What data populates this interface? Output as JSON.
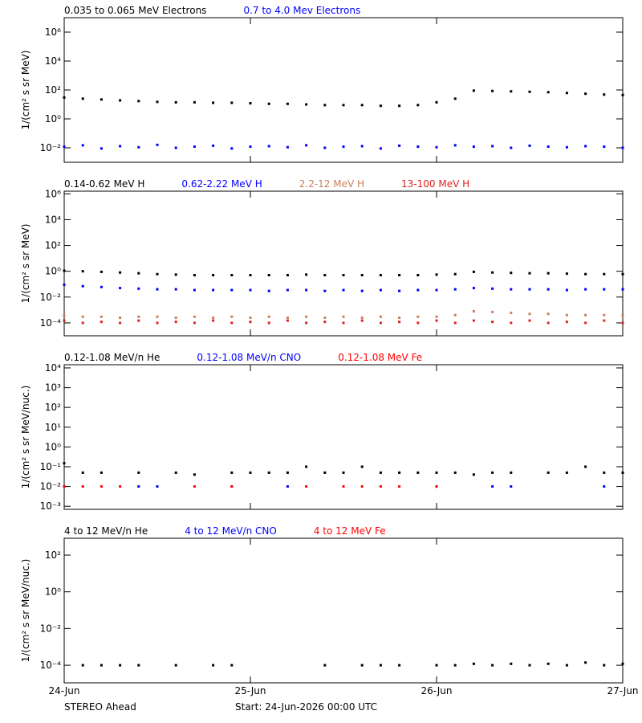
{
  "chart_data": [
    {
      "type": "scatter",
      "log_y": true,
      "ylabel": "1/(cm² s sr MeV)",
      "x": [
        0,
        0.1,
        0.2,
        0.3,
        0.4,
        0.5,
        0.6,
        0.7,
        0.8,
        0.9,
        1,
        1.1,
        1.2,
        1.3,
        1.4,
        1.5,
        1.6,
        1.7,
        1.8,
        1.9,
        2,
        2.1,
        2.2,
        2.3,
        2.4,
        2.5,
        2.6,
        2.7,
        2.8,
        2.9,
        3
      ],
      "ylim": [
        0.001,
        10000000
      ],
      "yticks": [
        {
          "value": 0.01,
          "label": "10⁻²"
        },
        {
          "value": 1,
          "label": "10⁰"
        },
        {
          "value": 100,
          "label": "10²"
        },
        {
          "value": 10000,
          "label": "10⁴"
        },
        {
          "value": 1000000,
          "label": "10⁶"
        }
      ],
      "series": [
        {
          "name": "0.035 to 0.065 MeV Electrons",
          "color": "#000000",
          "values": [
            30,
            25,
            22,
            19,
            17,
            15,
            14,
            14,
            13,
            13,
            12,
            11,
            11,
            10,
            9,
            9,
            9,
            8,
            8,
            9,
            14,
            25,
            90,
            85,
            80,
            75,
            70,
            62,
            55,
            48,
            45
          ]
        },
        {
          "name": "0.7 to 4.0 Mev Electrons",
          "color": "#0000ff",
          "values": [
            0.012,
            0.015,
            0.009,
            0.013,
            0.011,
            0.016,
            0.01,
            0.012,
            0.014,
            0.009,
            0.012,
            0.013,
            0.011,
            0.015,
            0.01,
            0.012,
            0.013,
            0.009,
            0.014,
            0.012,
            0.011,
            0.015,
            0.012,
            0.013,
            0.01,
            0.014,
            0.012,
            0.011,
            0.013,
            0.012,
            0.01
          ]
        }
      ]
    },
    {
      "type": "scatter",
      "log_y": true,
      "ylabel": "1/(cm² s sr MeV)",
      "x": [
        0,
        0.1,
        0.2,
        0.3,
        0.4,
        0.5,
        0.6,
        0.7,
        0.8,
        0.9,
        1,
        1.1,
        1.2,
        1.3,
        1.4,
        1.5,
        1.6,
        1.7,
        1.8,
        1.9,
        2,
        2.1,
        2.2,
        2.3,
        2.4,
        2.5,
        2.6,
        2.7,
        2.8,
        2.9,
        3
      ],
      "ylim": [
        1e-05,
        1600000
      ],
      "yticks": [
        {
          "value": 0.0001,
          "label": "10⁻⁴"
        },
        {
          "value": 0.01,
          "label": "10⁻²"
        },
        {
          "value": 1,
          "label": "10⁰"
        },
        {
          "value": 100,
          "label": "10²"
        },
        {
          "value": 10000,
          "label": "10⁴"
        },
        {
          "value": 1000000,
          "label": "10⁶"
        }
      ],
      "series": [
        {
          "name": "0.14-0.62 MeV H",
          "color": "#000000",
          "values": [
            1.1,
            1,
            0.9,
            0.8,
            0.7,
            0.6,
            0.55,
            0.5,
            0.5,
            0.5,
            0.5,
            0.5,
            0.5,
            0.55,
            0.5,
            0.5,
            0.5,
            0.5,
            0.5,
            0.5,
            0.55,
            0.6,
            0.9,
            0.8,
            0.75,
            0.7,
            0.7,
            0.65,
            0.6,
            0.6,
            0.6
          ]
        },
        {
          "name": "0.62-2.22 MeV H",
          "color": "#0000ff",
          "values": [
            0.09,
            0.07,
            0.06,
            0.05,
            0.045,
            0.04,
            0.04,
            0.035,
            0.035,
            0.035,
            0.035,
            0.03,
            0.035,
            0.035,
            0.03,
            0.035,
            0.03,
            0.035,
            0.03,
            0.035,
            0.035,
            0.04,
            0.05,
            0.045,
            0.04,
            0.04,
            0.04,
            0.035,
            0.04,
            0.04,
            0.04
          ]
        },
        {
          "name": "2.2-12 MeV H",
          "color": "#c8805a",
          "values": [
            0.0004,
            0.0003,
            0.0003,
            0.00025,
            0.0003,
            0.0003,
            0.00025,
            0.0003,
            0.00025,
            0.0003,
            0.00025,
            0.0003,
            0.00025,
            0.0003,
            0.00025,
            0.0003,
            0.00025,
            0.0003,
            0.00025,
            0.0003,
            0.0003,
            0.0004,
            0.0008,
            0.0007,
            0.0006,
            0.0005,
            0.0005,
            0.0004,
            0.0004,
            0.0004,
            0.0004
          ]
        },
        {
          "name": "13-100 MeV H",
          "color": "#e02020",
          "values": [
            0.00015,
            0.0001,
            0.00012,
            0.0001,
            0.00015,
            0.0001,
            0.00012,
            0.0001,
            0.00015,
            0.0001,
            0.00012,
            0.0001,
            0.00015,
            0.0001,
            0.00012,
            0.0001,
            0.00015,
            0.0001,
            0.00012,
            0.0001,
            0.00015,
            0.0001,
            0.00015,
            0.00012,
            0.0001,
            0.00015,
            0.0001,
            0.00012,
            0.0001,
            0.00015,
            0.0001
          ]
        }
      ]
    },
    {
      "type": "scatter",
      "log_y": true,
      "ylabel": "1/(cm² s sr MeV/nuc.)",
      "x": [
        0,
        0.1,
        0.2,
        0.3,
        0.4,
        0.5,
        0.6,
        0.7,
        0.8,
        0.9,
        1,
        1.1,
        1.2,
        1.3,
        1.4,
        1.5,
        1.6,
        1.7,
        1.8,
        1.9,
        2,
        2.1,
        2.2,
        2.3,
        2.4,
        2.5,
        2.6,
        2.7,
        2.8,
        2.9,
        3
      ],
      "ylim": [
        0.0007,
        14500
      ],
      "yticks": [
        {
          "value": 0.001,
          "label": "10⁻³"
        },
        {
          "value": 0.01,
          "label": "10⁻²"
        },
        {
          "value": 0.1,
          "label": "10⁻¹"
        },
        {
          "value": 1,
          "label": "10⁰"
        },
        {
          "value": 10,
          "label": "10¹"
        },
        {
          "value": 100,
          "label": "10²"
        },
        {
          "value": 1000,
          "label": "10³"
        },
        {
          "value": 10000,
          "label": "10⁴"
        }
      ],
      "series": [
        {
          "name": "0.12-1.08 MeV/n He",
          "color": "#000000",
          "values": [
            0.15,
            0.05,
            0.05,
            null,
            0.05,
            null,
            0.05,
            0.04,
            null,
            0.05,
            0.05,
            0.05,
            0.05,
            0.1,
            0.05,
            0.05,
            0.1,
            0.05,
            0.05,
            0.05,
            0.05,
            0.05,
            0.04,
            0.05,
            0.05,
            null,
            0.05,
            0.05,
            0.1,
            0.05,
            0.05
          ]
        },
        {
          "name": "0.12-1.08 MeV/n CNO",
          "color": "#0000ff",
          "values": [
            0.01,
            null,
            null,
            null,
            0.01,
            0.01,
            null,
            null,
            null,
            0.01,
            null,
            null,
            0.01,
            null,
            null,
            null,
            null,
            null,
            null,
            null,
            0.01,
            null,
            null,
            0.01,
            0.01,
            null,
            null,
            null,
            null,
            0.01,
            null
          ]
        },
        {
          "name": "0.12-1.08 MeV Fe",
          "color": "#ff0000",
          "values": [
            0.01,
            0.01,
            0.01,
            0.01,
            null,
            null,
            null,
            0.01,
            null,
            0.01,
            null,
            null,
            null,
            0.01,
            null,
            0.01,
            0.01,
            0.01,
            0.01,
            null,
            0.01,
            null,
            null,
            null,
            null,
            null,
            null,
            null,
            null,
            null,
            null
          ]
        }
      ]
    },
    {
      "type": "scatter",
      "log_y": true,
      "ylabel": "1/(cm² s sr MeV/nuc.)",
      "x": [
        0,
        0.1,
        0.2,
        0.3,
        0.4,
        0.5,
        0.6,
        0.7,
        0.8,
        0.9,
        1,
        1.1,
        1.2,
        1.3,
        1.4,
        1.5,
        1.6,
        1.7,
        1.8,
        1.9,
        2,
        2.1,
        2.2,
        2.3,
        2.4,
        2.5,
        2.6,
        2.7,
        2.8,
        2.9,
        3
      ],
      "ylim": [
        1.1e-05,
        830
      ],
      "yticks": [
        {
          "value": 0.0001,
          "label": "10⁻⁴"
        },
        {
          "value": 0.01,
          "label": "10⁻²"
        },
        {
          "value": 1,
          "label": "10⁰"
        },
        {
          "value": 100,
          "label": "10²"
        }
      ],
      "xlim": [
        0,
        3
      ],
      "xticks": [
        {
          "value": 0,
          "label": "24-Jun"
        },
        {
          "value": 1,
          "label": "25-Jun"
        },
        {
          "value": 2,
          "label": "26-Jun"
        },
        {
          "value": 3,
          "label": "27-Jun"
        }
      ],
      "footer_left": "STEREO Ahead",
      "footer_center": "Start: 24-Jun-2026 00:00 UTC",
      "series": [
        {
          "name": "4 to 12 MeV/n He",
          "color": "#000000",
          "values": [
            null,
            0.0001,
            0.0001,
            0.0001,
            0.0001,
            null,
            0.0001,
            null,
            0.0001,
            0.0001,
            null,
            null,
            null,
            null,
            0.0001,
            null,
            0.0001,
            0.0001,
            0.0001,
            null,
            0.0001,
            0.0001,
            0.00012,
            0.0001,
            0.00012,
            0.0001,
            0.00012,
            0.0001,
            0.00014,
            0.0001,
            0.00012
          ]
        },
        {
          "name": "4 to 12 MeV/n CNO",
          "color": "#0000ff",
          "values": [
            null,
            null,
            null,
            null,
            null,
            null,
            null,
            null,
            null,
            null,
            null,
            null,
            null,
            null,
            null,
            null,
            null,
            null,
            null,
            null,
            null,
            null,
            null,
            null,
            null,
            null,
            null,
            null,
            null,
            null,
            null
          ]
        },
        {
          "name": "4 to 12 MeV Fe",
          "color": "#ff0000",
          "values": [
            null,
            null,
            null,
            null,
            null,
            null,
            null,
            null,
            null,
            null,
            null,
            null,
            null,
            null,
            null,
            null,
            null,
            null,
            null,
            null,
            null,
            null,
            null,
            null,
            null,
            null,
            null,
            null,
            null,
            null,
            null
          ]
        }
      ]
    }
  ]
}
